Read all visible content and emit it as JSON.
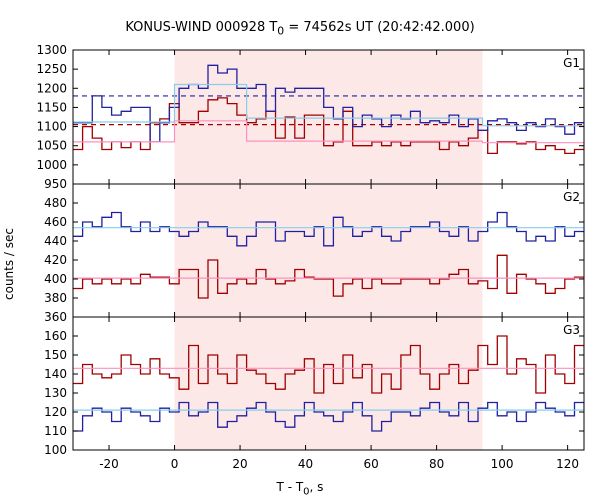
{
  "header": {
    "title_pre": "KONUS-WIND 000928 T",
    "title_sub": "0",
    "title_post": " = 74562s UT (20:42:42.000)"
  },
  "axes": {
    "ylabel": "counts / sec",
    "xlabel_pre": "T - T",
    "xlabel_sub": "0",
    "xlabel_post": ", s"
  },
  "colors": {
    "shade": "#fde8e8",
    "dark_red": "#a00000",
    "dark_blue": "#2020a0",
    "light_blue": "#87ceeb",
    "pink": "#ff8fc0"
  },
  "chart_data": {
    "type": "line",
    "style": "step-histogram",
    "x_range": [
      -31,
      125
    ],
    "x_ticks": [
      -20,
      0,
      20,
      40,
      60,
      80,
      100,
      120
    ],
    "shaded_interval": [
      0,
      94
    ],
    "bin_start": -31,
    "bin_width": 2.944,
    "panels": [
      {
        "label": "G1",
        "ylim": [
          950,
          1300
        ],
        "yticks": [
          950,
          1000,
          1050,
          1100,
          1150,
          1200,
          1250,
          1300
        ],
        "series": [
          {
            "color": "dark_red",
            "values": [
              1040,
              1100,
              1070,
              1040,
              1060,
              1045,
              1060,
              1040,
              1110,
              1120,
              1160,
              1110,
              1110,
              1140,
              1170,
              1175,
              1160,
              1130,
              1110,
              1120,
              1140,
              1070,
              1125,
              1070,
              1130,
              1130,
              1050,
              1060,
              1140,
              1050,
              1050,
              1060,
              1050,
              1060,
              1050,
              1060,
              1060,
              1060,
              1040,
              1060,
              1050,
              1070,
              1090,
              1030,
              1060,
              1060,
              1055,
              1060,
              1040,
              1050,
              1040,
              1030,
              1040,
              1050
            ]
          },
          {
            "color": "dark_blue",
            "values": [
              1110,
              1110,
              1180,
              1150,
              1130,
              1140,
              1150,
              1150,
              1060,
              1110,
              1150,
              1200,
              1210,
              1200,
              1260,
              1240,
              1250,
              1200,
              1200,
              1210,
              1140,
              1200,
              1190,
              1200,
              1200,
              1200,
              1150,
              1120,
              1150,
              1100,
              1130,
              1120,
              1100,
              1130,
              1120,
              1140,
              1110,
              1115,
              1110,
              1130,
              1100,
              1120,
              1090,
              1115,
              1120,
              1110,
              1090,
              1110,
              1100,
              1120,
              1100,
              1080,
              1110,
              1110
            ]
          },
          {
            "color": "light_blue",
            "points": [
              [
                -31,
                1112
              ],
              [
                0,
                1112
              ],
              [
                0,
                1210
              ],
              [
                22,
                1210
              ],
              [
                22,
                1122
              ],
              [
                94,
                1122
              ],
              [
                94,
                1102
              ],
              [
                125,
                1102
              ]
            ]
          },
          {
            "color": "pink",
            "points": [
              [
                -31,
                1060
              ],
              [
                0,
                1060
              ],
              [
                0,
                1115
              ],
              [
                22,
                1115
              ],
              [
                22,
                1062
              ],
              [
                94,
                1062
              ],
              [
                94,
                1058
              ],
              [
                125,
                1058
              ]
            ]
          }
        ],
        "reference_lines": [
          {
            "color": "dark_blue",
            "style": "dashed",
            "y": 1180
          },
          {
            "color": "dark_red",
            "style": "dashed",
            "y": 1105
          }
        ]
      },
      {
        "label": "G2",
        "ylim": [
          360,
          500
        ],
        "yticks": [
          360,
          380,
          400,
          420,
          440,
          460,
          480
        ],
        "series": [
          {
            "color": "dark_red",
            "values": [
              390,
              400,
              395,
              400,
              395,
              400,
              395,
              405,
              402,
              402,
              395,
              410,
              410,
              380,
              420,
              385,
              395,
              400,
              395,
              410,
              400,
              395,
              398,
              410,
              402,
              400,
              400,
              382,
              395,
              400,
              390,
              400,
              395,
              395,
              400,
              400,
              400,
              395,
              400,
              405,
              410,
              395,
              398,
              390,
              425,
              385,
              405,
              400,
              395,
              385,
              390,
              400,
              402,
              395
            ]
          },
          {
            "color": "dark_blue",
            "values": [
              445,
              460,
              455,
              465,
              470,
              455,
              450,
              460,
              450,
              455,
              450,
              445,
              450,
              460,
              455,
              455,
              445,
              435,
              445,
              460,
              460,
              440,
              450,
              450,
              445,
              455,
              435,
              465,
              455,
              445,
              450,
              455,
              445,
              440,
              450,
              455,
              455,
              460,
              450,
              445,
              455,
              440,
              450,
              460,
              470,
              455,
              450,
              440,
              445,
              440,
              455,
              445,
              450,
              445
            ]
          },
          {
            "color": "light_blue",
            "points": [
              [
                -31,
                454
              ],
              [
                125,
                454
              ]
            ]
          },
          {
            "color": "pink",
            "points": [
              [
                -31,
                401
              ],
              [
                125,
                401
              ]
            ]
          }
        ]
      },
      {
        "label": "G3",
        "ylim": [
          100,
          170
        ],
        "yticks": [
          100,
          110,
          120,
          130,
          140,
          150,
          160
        ],
        "series": [
          {
            "color": "dark_red",
            "values": [
              135,
              145,
              140,
              138,
              140,
              150,
              145,
              140,
              148,
              140,
              138,
              132,
              155,
              135,
              150,
              140,
              135,
              150,
              142,
              140,
              135,
              132,
              140,
              142,
              148,
              130,
              145,
              135,
              150,
              138,
              145,
              130,
              140,
              132,
              150,
              155,
              140,
              132,
              140,
              145,
              135,
              142,
              155,
              145,
              160,
              140,
              148,
              145,
              130,
              150,
              140,
              135,
              155,
              140
            ]
          },
          {
            "color": "dark_blue",
            "values": [
              110,
              118,
              122,
              120,
              115,
              122,
              120,
              118,
              115,
              122,
              120,
              125,
              118,
              120,
              125,
              112,
              115,
              118,
              122,
              125,
              120,
              115,
              112,
              118,
              125,
              120,
              118,
              115,
              120,
              125,
              118,
              110,
              115,
              120,
              120,
              118,
              122,
              125,
              120,
              118,
              125,
              115,
              122,
              125,
              118,
              120,
              115,
              120,
              125,
              122,
              120,
              118,
              125,
              120
            ]
          },
          {
            "color": "light_blue",
            "points": [
              [
                -31,
                121
              ],
              [
                125,
                121
              ]
            ]
          },
          {
            "color": "pink",
            "points": [
              [
                -31,
                143
              ],
              [
                125,
                143
              ]
            ]
          }
        ]
      }
    ]
  }
}
